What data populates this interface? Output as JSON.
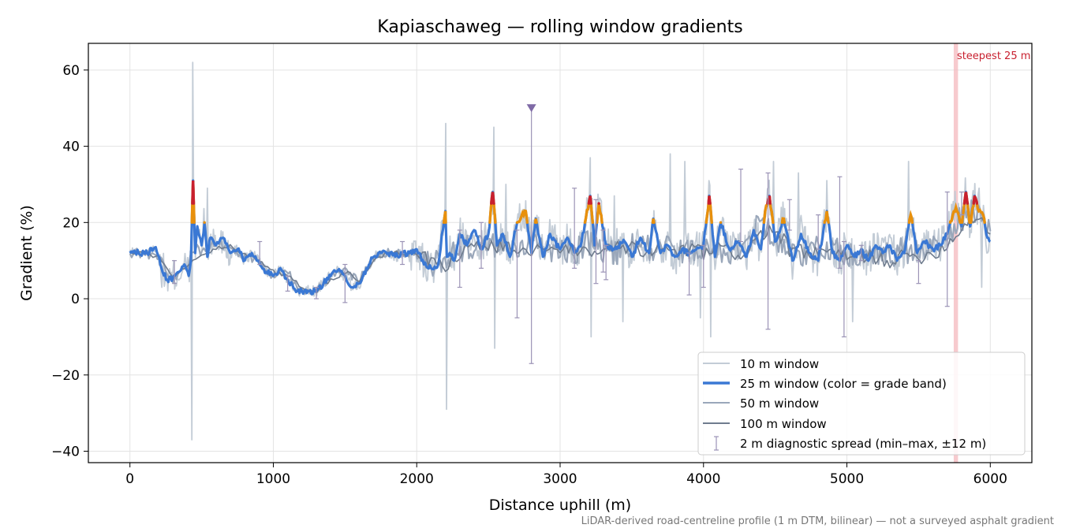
{
  "chart_data": {
    "type": "line",
    "title": "Kapiaschaweg — rolling window gradients",
    "xlabel": "Distance uphill (m)",
    "ylabel": "Gradient (%)",
    "xlim": [
      -290,
      6290
    ],
    "ylim": [
      -43,
      67
    ],
    "xticks": [
      0,
      1000,
      2000,
      3000,
      4000,
      5000,
      6000
    ],
    "xtick_labels": [
      "0",
      "1000",
      "2000",
      "3000",
      "4000",
      "5000",
      "6000"
    ],
    "yticks": [
      -40,
      -20,
      0,
      20,
      40,
      60
    ],
    "ytick_labels": [
      "−40",
      "−20",
      "0",
      "20",
      "40",
      "60"
    ],
    "grid": true,
    "legend_position": "lower-right",
    "footnote": "LiDAR-derived road-centreline profile (1 m DTM, bilinear) — not a surveyed asphalt gradient",
    "colors": {
      "w10": "#c3ccd6",
      "w25": "#3a78d4",
      "w50": "#9aa7ba",
      "w100": "#6f7c8e",
      "band_orange": "#e8900c",
      "band_red": "#c8202f",
      "errorbar": "#9b93b6",
      "marker": "#7f6aa6",
      "steep_band": "#f4b8be",
      "steep_label": "#c8202f"
    },
    "legend": [
      {
        "key": "w10",
        "label": "10 m window"
      },
      {
        "key": "w25",
        "label": "25 m window (color = grade band)"
      },
      {
        "key": "w50",
        "label": "50 m window"
      },
      {
        "key": "w100",
        "label": "100 m window"
      },
      {
        "key": "errorbar",
        "label": "2 m diagnostic spread (min–max, ±12 m)"
      }
    ],
    "steepest_annotation": {
      "label": "steepest 25 m",
      "x_start": 5745,
      "x_end": 5775
    },
    "outlier_marker": {
      "x": 2800,
      "y": 50,
      "low": -17
    },
    "series_w25": {
      "name": "25 m window",
      "x": [
        0,
        60,
        120,
        180,
        220,
        260,
        300,
        340,
        380,
        410,
        425,
        440,
        455,
        470,
        500,
        520,
        540,
        560,
        600,
        650,
        700,
        750,
        800,
        850,
        900,
        950,
        1000,
        1050,
        1100,
        1150,
        1200,
        1250,
        1300,
        1350,
        1400,
        1450,
        1500,
        1550,
        1600,
        1650,
        1700,
        1750,
        1800,
        1850,
        1900,
        1950,
        2000,
        2050,
        2100,
        2150,
        2200,
        2210,
        2230,
        2260,
        2300,
        2350,
        2400,
        2450,
        2500,
        2530,
        2560,
        2600,
        2650,
        2700,
        2760,
        2800,
        2830,
        2880,
        2930,
        3000,
        3050,
        3100,
        3150,
        3210,
        3240,
        3270,
        3320,
        3380,
        3450,
        3500,
        3560,
        3620,
        3650,
        3700,
        3750,
        3800,
        3850,
        3900,
        3950,
        4000,
        4040,
        4080,
        4120,
        4180,
        4240,
        4300,
        4350,
        4400,
        4430,
        4460,
        4500,
        4560,
        4620,
        4680,
        4740,
        4800,
        4860,
        4900,
        4950,
        5000,
        5050,
        5100,
        5150,
        5200,
        5250,
        5300,
        5350,
        5400,
        5445,
        5490,
        5540,
        5600,
        5650,
        5700,
        5760,
        5800,
        5830,
        5860,
        5890,
        5920,
        5950,
        5980,
        6000
      ],
      "values": [
        12.5,
        12,
        12,
        13.5,
        8,
        5,
        5.5,
        7,
        9,
        6,
        10,
        31,
        12,
        19,
        14,
        20,
        11,
        16,
        14,
        16,
        12,
        13,
        10,
        12,
        10,
        7,
        6,
        8,
        5,
        2.5,
        2,
        2,
        2,
        4,
        6,
        7.5,
        6,
        3,
        4,
        8,
        11,
        12,
        12,
        11,
        12,
        12,
        13,
        9,
        8,
        9,
        23,
        11,
        12,
        10,
        17,
        14,
        18,
        13,
        17,
        28,
        14,
        17,
        11,
        20,
        23,
        12,
        21,
        11,
        17,
        13,
        16,
        12,
        15,
        27,
        14,
        25,
        14,
        13,
        15,
        11,
        16,
        12,
        21,
        12,
        14,
        11,
        13,
        12,
        13,
        14,
        27,
        11,
        20,
        13,
        15,
        11,
        18,
        13,
        23,
        27,
        15,
        21,
        10,
        17,
        12,
        10,
        23,
        12,
        10,
        14,
        11,
        13,
        10,
        14,
        12,
        14,
        10,
        12,
        22,
        12,
        15,
        13,
        14,
        17,
        24,
        19,
        28,
        19,
        27,
        23,
        22,
        16,
        15
      ]
    },
    "series_w50": {
      "name": "50 m window",
      "x": [
        0,
        100,
        200,
        300,
        400,
        450,
        500,
        600,
        700,
        800,
        900,
        1000,
        1100,
        1200,
        1300,
        1400,
        1500,
        1600,
        1700,
        1800,
        1900,
        2000,
        2100,
        2200,
        2300,
        2400,
        2500,
        2600,
        2700,
        2800,
        2900,
        3000,
        3100,
        3200,
        3300,
        3400,
        3500,
        3600,
        3700,
        3800,
        3900,
        4000,
        4100,
        4200,
        4300,
        4400,
        4500,
        4600,
        4700,
        4800,
        4900,
        5000,
        5100,
        5200,
        5300,
        5400,
        5500,
        5600,
        5700,
        5800,
        5900,
        6000
      ],
      "values": [
        12,
        12,
        11,
        5,
        8,
        14,
        12,
        15,
        13,
        11,
        10,
        6,
        7,
        2,
        2,
        6,
        7,
        5,
        11,
        12,
        12,
        12,
        9,
        10,
        13,
        14,
        13,
        15,
        12,
        16,
        11,
        14,
        12,
        15,
        13,
        12,
        14,
        13,
        14,
        12,
        13,
        14,
        13,
        12,
        15,
        20,
        16,
        13,
        12,
        13,
        14,
        12,
        11,
        12,
        11,
        13,
        12,
        13,
        17,
        21,
        23,
        17
      ]
    },
    "series_w100": {
      "name": "100 m window",
      "x": [
        0,
        100,
        200,
        300,
        400,
        500,
        600,
        700,
        800,
        900,
        1000,
        1100,
        1200,
        1300,
        1400,
        1500,
        1600,
        1700,
        1800,
        1900,
        2000,
        2100,
        2200,
        2300,
        2400,
        2500,
        2600,
        2700,
        2800,
        2900,
        3000,
        3100,
        3200,
        3300,
        3400,
        3500,
        3600,
        3700,
        3800,
        3900,
        4000,
        4100,
        4200,
        4300,
        4400,
        4500,
        4600,
        4700,
        4800,
        4900,
        5000,
        5100,
        5200,
        5300,
        5400,
        5500,
        5600,
        5700,
        5800,
        5900,
        6000
      ],
      "values": [
        12,
        12,
        11,
        6,
        8,
        12,
        13,
        14,
        12,
        10,
        7,
        6,
        3,
        2,
        5,
        7,
        5,
        10,
        12,
        12,
        12,
        10,
        9,
        12,
        13,
        14,
        14,
        12,
        13,
        12,
        12,
        13,
        13,
        12,
        13,
        13,
        12,
        13,
        12,
        13,
        12,
        13,
        12,
        12,
        17,
        18,
        13,
        12,
        12,
        12,
        11,
        11,
        11,
        10,
        11,
        11,
        12,
        14,
        19,
        22,
        18
      ]
    },
    "errorbars": [
      {
        "x": 310,
        "low": 4,
        "high": 10
      },
      {
        "x": 905,
        "low": 9,
        "high": 15
      },
      {
        "x": 1100,
        "low": 2,
        "high": 6
      },
      {
        "x": 1300,
        "low": 0,
        "high": 3
      },
      {
        "x": 1500,
        "low": -1,
        "high": 9
      },
      {
        "x": 1900,
        "low": 9,
        "high": 15
      },
      {
        "x": 2300,
        "low": 3,
        "high": 18
      },
      {
        "x": 2450,
        "low": 8,
        "high": 20
      },
      {
        "x": 2700,
        "low": -5,
        "high": 18
      },
      {
        "x": 3100,
        "low": 8,
        "high": 29
      },
      {
        "x": 3250,
        "low": 4,
        "high": 26
      },
      {
        "x": 3300,
        "low": 7,
        "high": 18
      },
      {
        "x": 3320,
        "low": 5,
        "high": 14
      },
      {
        "x": 3900,
        "low": 1,
        "high": 12
      },
      {
        "x": 4000,
        "low": 3,
        "high": 14
      },
      {
        "x": 4260,
        "low": 15,
        "high": 34
      },
      {
        "x": 4450,
        "low": -8,
        "high": 33
      },
      {
        "x": 4600,
        "low": 18,
        "high": 26
      },
      {
        "x": 4800,
        "low": 13,
        "high": 22
      },
      {
        "x": 4950,
        "low": 8,
        "high": 32
      },
      {
        "x": 4980,
        "low": -10,
        "high": 15
      },
      {
        "x": 5100,
        "low": 10,
        "high": 14
      },
      {
        "x": 5500,
        "low": 4,
        "high": 10
      },
      {
        "x": 5700,
        "low": -2,
        "high": 28
      },
      {
        "x": 5800,
        "low": 22,
        "high": 28
      }
    ]
  }
}
